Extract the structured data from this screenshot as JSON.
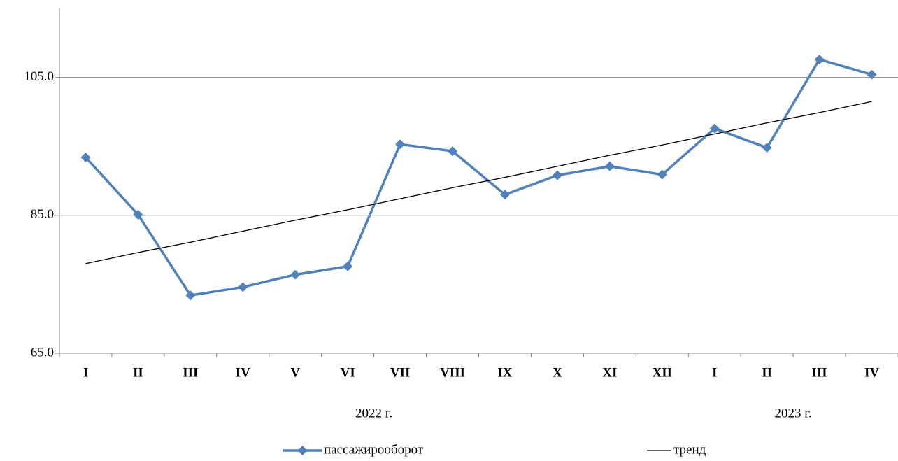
{
  "chart_data": {
    "type": "line",
    "categories": [
      "I",
      "II",
      "III",
      "IV",
      "V",
      "VI",
      "VII",
      "VIII",
      "IX",
      "X",
      "XI",
      "XII",
      "I",
      "II",
      "III",
      "IV"
    ],
    "x_groups": [
      {
        "label": "2022 г.",
        "count": 12
      },
      {
        "label": "2023 г.",
        "count": 4
      }
    ],
    "series": [
      {
        "name": "пассажирооборот",
        "color": "#4f81bd",
        "marker": "diamond",
        "values": [
          93.4,
          85.1,
          73.4,
          74.6,
          76.4,
          77.6,
          95.3,
          94.3,
          88.0,
          90.8,
          92.1,
          90.9,
          97.6,
          94.8,
          107.6,
          105.4
        ]
      },
      {
        "name": "тренд",
        "color": "#000000",
        "values": [
          78.0,
          79.6,
          81.1,
          82.7,
          84.3,
          85.8,
          87.4,
          89.0,
          90.5,
          92.1,
          93.7,
          95.2,
          96.8,
          98.4,
          99.9,
          101.5
        ]
      }
    ],
    "ylim": [
      65,
      115
    ],
    "yticks": [
      {
        "value": 65,
        "label": "65.0"
      },
      {
        "value": 85,
        "label": "85.0"
      },
      {
        "value": 105,
        "label": "105.0"
      }
    ],
    "grid": true,
    "legend": "bottom"
  }
}
